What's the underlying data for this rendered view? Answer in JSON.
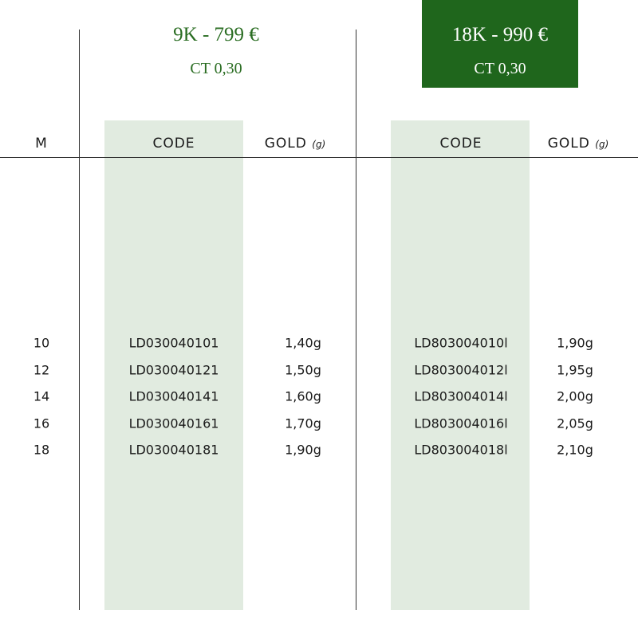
{
  "groups": [
    {
      "title": "9K - 799 €",
      "subtitle": "CT 0,30"
    },
    {
      "title": "18K - 990 €",
      "subtitle": "CT 0,30"
    }
  ],
  "header": {
    "size": "M",
    "columns": [
      {
        "code": "CODE",
        "gold": "GOLD",
        "unit": "(g)"
      },
      {
        "code": "CODE",
        "gold": "GOLD",
        "unit": "(g)"
      }
    ]
  },
  "rows": [
    [
      "10",
      "LD030040101",
      "1,40g",
      "LD803004010l",
      "1,90g"
    ],
    [
      "12",
      "LD030040121",
      "1,50g",
      "LD803004012l",
      "1,95g"
    ],
    [
      "14",
      "LD030040141",
      "1,60g",
      "LD803004014l",
      "2,00g"
    ],
    [
      "16",
      "LD030040161",
      "1,70g",
      "LD803004016l",
      "2,05g"
    ],
    [
      "18",
      "LD030040181",
      "1,90g",
      "LD803004018l",
      "2,10g"
    ]
  ]
}
